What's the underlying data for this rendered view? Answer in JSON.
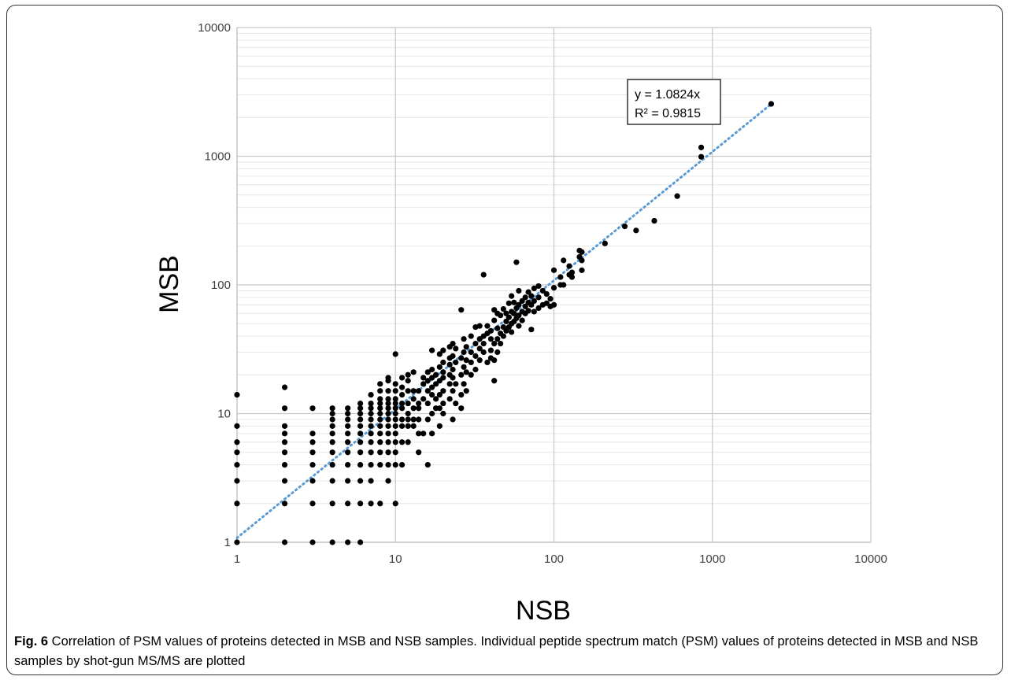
{
  "chart_data": {
    "type": "scatter",
    "xlabel": "NSB",
    "ylabel": "MSB",
    "xscale": "log",
    "yscale": "log",
    "xlim": [
      1,
      10000
    ],
    "ylim": [
      1,
      10000
    ],
    "x_ticks": [
      "1",
      "10",
      "100",
      "1000",
      "10000"
    ],
    "y_ticks": [
      "1",
      "10",
      "100",
      "1000",
      "10000"
    ],
    "grid": "major and minor",
    "marker_color": "#000000",
    "trendline": {
      "style": "dotted",
      "color": "#5b9bd5",
      "equation": "y = 1.0824x",
      "r_squared": "R² = 0.9815",
      "slope": 1.0824,
      "x_range": [
        1,
        2400
      ]
    },
    "points": [
      [
        1,
        1
      ],
      [
        1,
        2
      ],
      [
        1,
        3
      ],
      [
        1,
        4
      ],
      [
        1,
        5
      ],
      [
        1,
        6
      ],
      [
        1,
        8
      ],
      [
        1,
        14
      ],
      [
        2,
        1
      ],
      [
        2,
        2
      ],
      [
        2,
        3
      ],
      [
        2,
        4
      ],
      [
        2,
        5
      ],
      [
        2,
        6
      ],
      [
        2,
        7
      ],
      [
        2,
        8
      ],
      [
        2,
        11
      ],
      [
        2,
        16
      ],
      [
        3,
        1
      ],
      [
        3,
        2
      ],
      [
        3,
        3
      ],
      [
        3,
        4
      ],
      [
        3,
        5
      ],
      [
        3,
        6
      ],
      [
        3,
        7
      ],
      [
        3,
        11
      ],
      [
        4,
        1
      ],
      [
        4,
        2
      ],
      [
        4,
        3
      ],
      [
        4,
        4
      ],
      [
        4,
        5
      ],
      [
        4,
        6
      ],
      [
        4,
        7
      ],
      [
        4,
        8
      ],
      [
        4,
        9
      ],
      [
        4,
        10
      ],
      [
        4,
        11
      ],
      [
        5,
        1
      ],
      [
        5,
        2
      ],
      [
        5,
        3
      ],
      [
        5,
        4
      ],
      [
        5,
        5
      ],
      [
        5,
        6
      ],
      [
        5,
        7
      ],
      [
        5,
        8
      ],
      [
        5,
        9
      ],
      [
        5,
        10
      ],
      [
        5,
        11
      ],
      [
        6,
        1
      ],
      [
        6,
        2
      ],
      [
        6,
        3
      ],
      [
        6,
        4
      ],
      [
        6,
        5
      ],
      [
        6,
        6
      ],
      [
        6,
        7
      ],
      [
        6,
        8
      ],
      [
        6,
        9
      ],
      [
        6,
        10
      ],
      [
        6,
        11
      ],
      [
        6,
        12
      ],
      [
        7,
        2
      ],
      [
        7,
        3
      ],
      [
        7,
        4
      ],
      [
        7,
        5
      ],
      [
        7,
        6
      ],
      [
        7,
        7
      ],
      [
        7,
        8
      ],
      [
        7,
        9
      ],
      [
        7,
        10
      ],
      [
        7,
        11
      ],
      [
        7,
        12
      ],
      [
        7,
        14
      ],
      [
        8,
        2
      ],
      [
        8,
        4
      ],
      [
        8,
        5
      ],
      [
        8,
        6
      ],
      [
        8,
        7
      ],
      [
        8,
        8
      ],
      [
        8,
        9
      ],
      [
        8,
        10
      ],
      [
        8,
        11
      ],
      [
        8,
        12
      ],
      [
        8,
        13
      ],
      [
        8,
        15
      ],
      [
        8,
        17
      ],
      [
        9,
        3
      ],
      [
        9,
        4
      ],
      [
        9,
        5
      ],
      [
        9,
        6
      ],
      [
        9,
        7
      ],
      [
        9,
        8
      ],
      [
        9,
        9
      ],
      [
        9,
        10
      ],
      [
        9,
        11
      ],
      [
        9,
        12
      ],
      [
        9,
        13
      ],
      [
        9,
        15
      ],
      [
        9,
        18
      ],
      [
        9,
        19
      ],
      [
        10,
        2
      ],
      [
        10,
        4
      ],
      [
        10,
        5
      ],
      [
        10,
        6
      ],
      [
        10,
        7
      ],
      [
        10,
        8
      ],
      [
        10,
        9
      ],
      [
        10,
        10
      ],
      [
        10,
        11
      ],
      [
        10,
        12
      ],
      [
        10,
        13
      ],
      [
        10,
        15
      ],
      [
        10,
        17
      ],
      [
        10,
        29
      ],
      [
        11,
        4
      ],
      [
        11,
        6
      ],
      [
        11,
        8
      ],
      [
        11,
        9
      ],
      [
        11,
        11
      ],
      [
        11,
        12
      ],
      [
        11,
        14
      ],
      [
        11,
        16
      ],
      [
        11,
        19
      ],
      [
        12,
        6
      ],
      [
        12,
        8
      ],
      [
        12,
        9
      ],
      [
        12,
        10
      ],
      [
        12,
        12
      ],
      [
        12,
        15
      ],
      [
        12,
        18
      ],
      [
        12,
        20
      ],
      [
        13,
        8
      ],
      [
        13,
        9
      ],
      [
        13,
        11
      ],
      [
        13,
        13
      ],
      [
        13,
        15
      ],
      [
        13,
        21
      ],
      [
        14,
        5
      ],
      [
        14,
        7
      ],
      [
        14,
        9
      ],
      [
        14,
        11
      ],
      [
        14,
        12
      ],
      [
        14,
        15
      ],
      [
        15,
        7
      ],
      [
        15,
        13
      ],
      [
        15,
        17
      ],
      [
        15,
        19
      ],
      [
        16,
        4
      ],
      [
        16,
        9
      ],
      [
        16,
        12
      ],
      [
        16,
        15
      ],
      [
        16,
        18
      ],
      [
        16,
        21
      ],
      [
        17,
        7
      ],
      [
        17,
        10
      ],
      [
        17,
        14
      ],
      [
        17,
        16
      ],
      [
        17,
        19
      ],
      [
        17,
        22
      ],
      [
        17,
        31
      ],
      [
        18,
        11
      ],
      [
        18,
        13
      ],
      [
        18,
        17
      ],
      [
        18,
        20
      ],
      [
        19,
        8
      ],
      [
        19,
        11
      ],
      [
        19,
        14
      ],
      [
        19,
        18
      ],
      [
        19,
        23
      ],
      [
        19,
        29
      ],
      [
        20,
        10
      ],
      [
        20,
        12
      ],
      [
        20,
        15
      ],
      [
        20,
        19
      ],
      [
        20,
        21
      ],
      [
        20,
        25
      ],
      [
        20,
        31
      ],
      [
        22,
        13
      ],
      [
        22,
        17
      ],
      [
        22,
        20
      ],
      [
        22,
        24
      ],
      [
        22,
        27
      ],
      [
        22,
        33
      ],
      [
        23,
        9
      ],
      [
        23,
        15
      ],
      [
        23,
        19
      ],
      [
        23,
        22
      ],
      [
        23,
        28
      ],
      [
        23,
        35
      ],
      [
        24,
        12
      ],
      [
        24,
        17
      ],
      [
        24,
        25
      ],
      [
        24,
        32
      ],
      [
        26,
        11
      ],
      [
        26,
        14
      ],
      [
        26,
        20
      ],
      [
        26,
        27
      ],
      [
        26,
        64
      ],
      [
        27,
        17
      ],
      [
        27,
        23
      ],
      [
        27,
        30
      ],
      [
        27,
        38
      ],
      [
        28,
        15
      ],
      [
        28,
        21
      ],
      [
        28,
        26
      ],
      [
        28,
        33
      ],
      [
        30,
        20
      ],
      [
        30,
        25
      ],
      [
        30,
        30
      ],
      [
        30,
        40
      ],
      [
        32,
        22
      ],
      [
        32,
        28
      ],
      [
        32,
        35
      ],
      [
        32,
        47
      ],
      [
        34,
        26
      ],
      [
        34,
        32
      ],
      [
        34,
        38
      ],
      [
        34,
        48
      ],
      [
        36,
        30
      ],
      [
        36,
        35
      ],
      [
        36,
        40
      ],
      [
        36,
        120
      ],
      [
        38,
        25
      ],
      [
        38,
        42
      ],
      [
        38,
        48
      ],
      [
        40,
        27
      ],
      [
        40,
        31
      ],
      [
        40,
        38
      ],
      [
        40,
        44
      ],
      [
        42,
        18
      ],
      [
        42,
        26
      ],
      [
        42,
        35
      ],
      [
        42,
        53
      ],
      [
        42,
        64
      ],
      [
        44,
        30
      ],
      [
        44,
        38
      ],
      [
        44,
        46
      ],
      [
        44,
        60
      ],
      [
        46,
        35
      ],
      [
        46,
        42
      ],
      [
        46,
        58
      ],
      [
        48,
        40
      ],
      [
        48,
        47
      ],
      [
        48,
        65
      ],
      [
        50,
        44
      ],
      [
        50,
        52
      ],
      [
        50,
        60
      ],
      [
        52,
        47
      ],
      [
        52,
        56
      ],
      [
        52,
        72
      ],
      [
        54,
        43
      ],
      [
        54,
        50
      ],
      [
        54,
        62
      ],
      [
        54,
        82
      ],
      [
        56,
        52
      ],
      [
        56,
        60
      ],
      [
        56,
        73
      ],
      [
        58,
        55
      ],
      [
        58,
        66
      ],
      [
        58,
        150
      ],
      [
        60,
        48
      ],
      [
        60,
        58
      ],
      [
        60,
        70
      ],
      [
        60,
        90
      ],
      [
        63,
        53
      ],
      [
        63,
        62
      ],
      [
        63,
        75
      ],
      [
        66,
        60
      ],
      [
        66,
        68
      ],
      [
        66,
        80
      ],
      [
        69,
        63
      ],
      [
        69,
        73
      ],
      [
        69,
        88
      ],
      [
        72,
        45
      ],
      [
        72,
        70
      ],
      [
        72,
        82
      ],
      [
        75,
        62
      ],
      [
        75,
        75
      ],
      [
        75,
        94
      ],
      [
        80,
        66
      ],
      [
        80,
        80
      ],
      [
        80,
        98
      ],
      [
        85,
        70
      ],
      [
        85,
        90
      ],
      [
        90,
        72
      ],
      [
        90,
        85
      ],
      [
        95,
        68
      ],
      [
        95,
        78
      ],
      [
        100,
        70
      ],
      [
        100,
        95
      ],
      [
        100,
        130
      ],
      [
        110,
        100
      ],
      [
        110,
        115
      ],
      [
        115,
        155
      ],
      [
        115,
        100
      ],
      [
        125,
        140
      ],
      [
        125,
        120
      ],
      [
        130,
        115
      ],
      [
        130,
        125
      ],
      [
        145,
        165
      ],
      [
        145,
        185
      ],
      [
        150,
        180
      ],
      [
        150,
        130
      ],
      [
        150,
        155
      ],
      [
        210,
        210
      ],
      [
        280,
        285
      ],
      [
        330,
        265
      ],
      [
        430,
        315
      ],
      [
        600,
        490
      ],
      [
        850,
        990
      ],
      [
        850,
        1170
      ],
      [
        2350,
        2550
      ]
    ]
  },
  "caption": {
    "label": "Fig. 6",
    "text": " Correlation of PSM values of proteins detected in MSB and NSB samples. Individual peptide spectrum match (PSM) values of proteins detected in MSB and NSB samples by shot-gun MS/MS are plotted"
  }
}
